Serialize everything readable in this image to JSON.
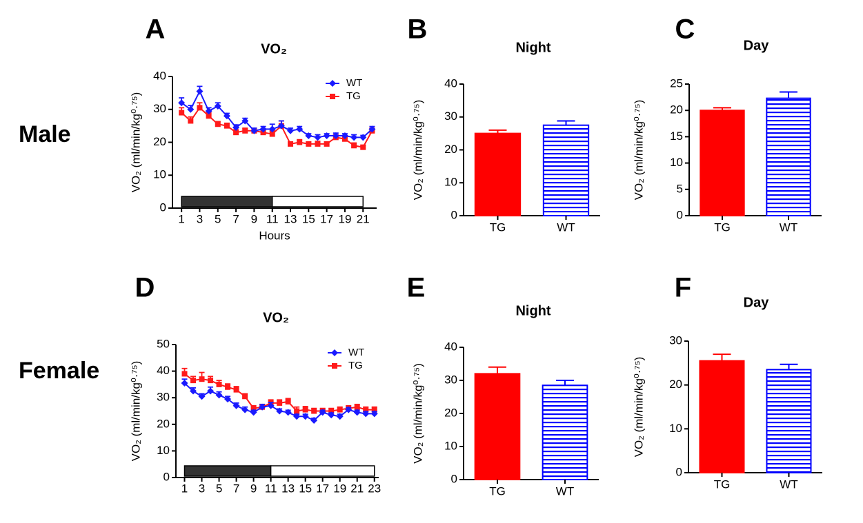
{
  "row_labels": [
    "Male",
    "Female"
  ],
  "chart_data": [
    {
      "type": "line",
      "panel": "A",
      "title": "VO₂",
      "y_label": "VO₂ (ml/min/kg⁰·⁷⁵)",
      "x_label": "Hours",
      "x": [
        1,
        2,
        3,
        4,
        5,
        6,
        7,
        8,
        9,
        10,
        11,
        12,
        13,
        14,
        15,
        16,
        17,
        18,
        19,
        20,
        21,
        22
      ],
      "xlim": [
        0,
        22.5
      ],
      "xticks": [
        1,
        3,
        5,
        7,
        9,
        11,
        13,
        15,
        17,
        19,
        21
      ],
      "ylim": [
        0,
        40
      ],
      "yticks": [
        0,
        10,
        20,
        30,
        40
      ],
      "legend": "upper right",
      "dark_period": [
        1,
        11
      ],
      "light_period": [
        11,
        21
      ],
      "series": [
        {
          "name": "WT",
          "color": "#1a1aff",
          "marker": "diamond",
          "values": [
            32,
            30,
            35.5,
            29.5,
            31,
            28,
            24.5,
            26.5,
            23.5,
            24,
            24,
            25,
            23.5,
            24,
            22,
            21.5,
            22,
            22,
            22,
            21.5,
            21.5,
            24
          ],
          "errors": [
            1.5,
            1.2,
            1.5,
            1,
            1,
            0.8,
            0.8,
            0.8,
            0.8,
            0.8,
            1.5,
            1.5,
            0.8,
            0.8,
            0.6,
            0.8,
            0.6,
            0.8,
            0.6,
            0.8,
            0.6,
            0.8
          ]
        },
        {
          "name": "TG",
          "color": "#ff1a1a",
          "marker": "square",
          "values": [
            29,
            26.5,
            30.5,
            28,
            25.5,
            25,
            23,
            23.5,
            23.5,
            23,
            22.5,
            25,
            19.5,
            20,
            19.5,
            19.5,
            19.5,
            21.5,
            21,
            19,
            18.5,
            23.5
          ],
          "errors": [
            1.5,
            1.2,
            1.5,
            1,
            0.8,
            0.8,
            0.8,
            0.8,
            0.8,
            0.8,
            1,
            1.5,
            0.6,
            0.8,
            0.6,
            0.8,
            0.6,
            0.8,
            0.6,
            0.8,
            0.6,
            0.8
          ]
        }
      ]
    },
    {
      "type": "bar",
      "panel": "B",
      "title": "Night",
      "y_label": "VO₂ (ml/min/kg⁰·⁷⁵)",
      "categories": [
        "TG",
        "WT"
      ],
      "values": [
        25,
        27.5
      ],
      "errors": [
        1,
        1.3
      ],
      "colors": [
        "#ff0000",
        "#0000ff"
      ],
      "fills": [
        "solid",
        "horizontal-stripes"
      ],
      "ylim": [
        0,
        40
      ],
      "yticks": [
        0,
        10,
        20,
        30,
        40
      ]
    },
    {
      "type": "bar",
      "panel": "C",
      "title": "Day",
      "y_label": "VO₂ (ml/min/kg⁰·⁷⁵)",
      "categories": [
        "TG",
        "WT"
      ],
      "values": [
        20,
        22.3
      ],
      "errors": [
        0.5,
        1.2
      ],
      "colors": [
        "#ff0000",
        "#0000ff"
      ],
      "fills": [
        "solid",
        "horizontal-stripes"
      ],
      "ylim": [
        0,
        25
      ],
      "yticks": [
        0,
        5,
        10,
        15,
        20,
        25
      ]
    },
    {
      "type": "line",
      "panel": "D",
      "title": "VO₂",
      "y_label": "VO₂ (ml/min/kg⁰·⁷⁵)",
      "x": [
        1,
        2,
        3,
        4,
        5,
        6,
        7,
        8,
        9,
        10,
        11,
        12,
        13,
        14,
        15,
        16,
        17,
        18,
        19,
        20,
        21,
        22,
        23
      ],
      "xlim": [
        0,
        23.5
      ],
      "xticks": [
        1,
        3,
        5,
        7,
        9,
        11,
        13,
        15,
        17,
        19,
        21,
        23
      ],
      "ylim": [
        0,
        50
      ],
      "yticks": [
        0,
        10,
        20,
        30,
        40,
        50
      ],
      "legend": "upper right",
      "dark_period": [
        1,
        11
      ],
      "light_period": [
        11,
        23
      ],
      "series": [
        {
          "name": "WT",
          "color": "#1a1aff",
          "marker": "diamond",
          "values": [
            35.5,
            32.5,
            30.5,
            32.5,
            31,
            29.5,
            27,
            25.5,
            24.5,
            26.5,
            27,
            25,
            24.5,
            23,
            23,
            21.5,
            24.5,
            23.5,
            23,
            25.5,
            24.5,
            24,
            24
          ],
          "errors": [
            1.5,
            1.2,
            1,
            1.5,
            1.2,
            1,
            1,
            1,
            0.8,
            1,
            1.2,
            0.8,
            0.8,
            0.8,
            0.8,
            0.8,
            0.8,
            0.8,
            0.8,
            0.8,
            0.8,
            0.8,
            0.8
          ]
        },
        {
          "name": "TG",
          "color": "#ff1a1a",
          "marker": "square",
          "values": [
            39,
            36.5,
            37,
            36.5,
            35,
            34,
            33,
            30.5,
            26,
            26.5,
            28,
            28,
            28.5,
            25,
            25.5,
            25,
            25,
            25,
            25.5,
            26,
            26.5,
            25.5,
            25.5
          ],
          "errors": [
            2,
            1.5,
            2.5,
            1.5,
            1.5,
            1.2,
            1.2,
            1,
            1,
            1,
            1.2,
            1.2,
            1.2,
            1.5,
            1.2,
            1,
            1,
            1,
            1,
            1,
            1,
            1,
            1
          ]
        }
      ]
    },
    {
      "type": "bar",
      "panel": "E",
      "title": "Night",
      "y_label": "VO₂ (ml/min/kg⁰·⁷⁵)",
      "categories": [
        "TG",
        "WT"
      ],
      "values": [
        32,
        28.5
      ],
      "errors": [
        2,
        1.5
      ],
      "colors": [
        "#ff0000",
        "#0000ff"
      ],
      "fills": [
        "solid",
        "horizontal-stripes"
      ],
      "ylim": [
        0,
        40
      ],
      "yticks": [
        0,
        10,
        20,
        30,
        40
      ]
    },
    {
      "type": "bar",
      "panel": "F",
      "title": "Day",
      "y_label": "VO₂ (ml/min/kg⁰·⁷⁵)",
      "categories": [
        "TG",
        "WT"
      ],
      "values": [
        25.5,
        23.5
      ],
      "errors": [
        1.5,
        1.2
      ],
      "colors": [
        "#ff0000",
        "#0000ff"
      ],
      "fills": [
        "solid",
        "horizontal-stripes"
      ],
      "ylim": [
        0,
        30
      ],
      "yticks": [
        0,
        10,
        20,
        30
      ]
    }
  ]
}
